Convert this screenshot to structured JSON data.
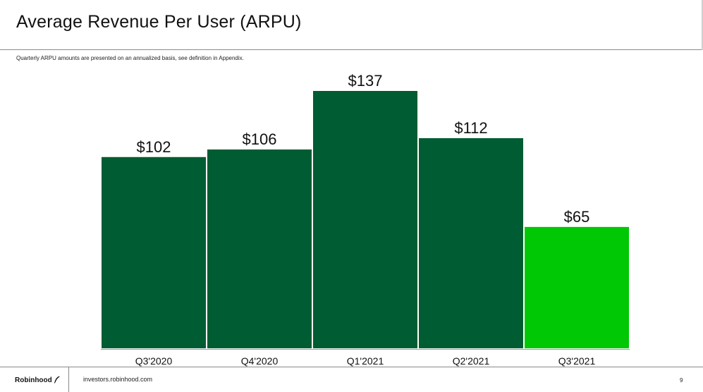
{
  "title": "Average Revenue Per User (ARPU)",
  "footnote": "Quarterly ARPU amounts are presented on an annualized basis, see definition in Appendix.",
  "footer": {
    "brand": "Robinhood",
    "brand_icon": "feather-icon",
    "site": "investors.robinhood.com",
    "page": "9"
  },
  "colors": {
    "bar_dark": "#005c32",
    "bar_highlight": "#00c805"
  },
  "chart_data": {
    "type": "bar",
    "categories": [
      "Q3'2020",
      "Q4'2020",
      "Q1'2021",
      "Q2'2021",
      "Q3'2021"
    ],
    "values": [
      102,
      106,
      137,
      112,
      65
    ],
    "data_labels": [
      "$102",
      "$106",
      "$137",
      "$112",
      "$65"
    ],
    "highlight_index": 4,
    "title": "",
    "xlabel": "",
    "ylabel": "",
    "grid": false,
    "legend": "none"
  }
}
